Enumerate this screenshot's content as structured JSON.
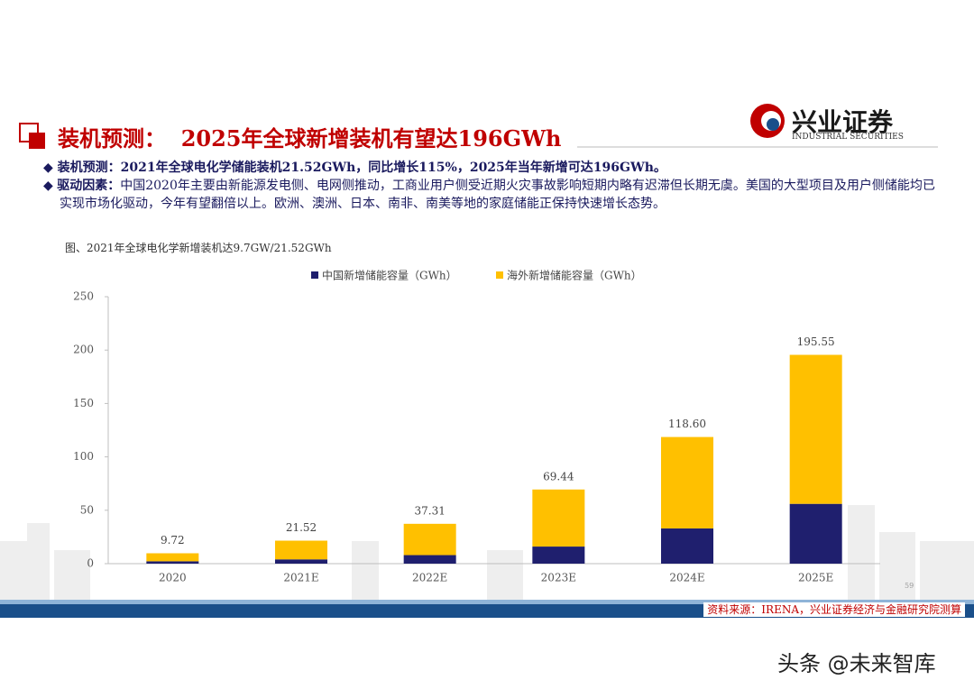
{
  "header": {
    "title": "装机预测：  2025年全球新增装机有望达196GWh",
    "logo_name": "兴业证券",
    "logo_en": "INDUSTRIAL SECURITIES"
  },
  "bullets": [
    {
      "label": "装机预测：",
      "text": "2021年全球电化学储能装机21.52GWh，同比增长115%，2025年当年新增可达196GWh。"
    },
    {
      "label": "驱动因素：",
      "text": "中国2020年主要由新能源发电侧、电网侧推动，工商业用户侧受近期火灾事故影响短期内略有迟滞但长期无虞。美国的大型项目及用户侧储能均已实现市场化驱动，今年有望翻倍以上。欧洲、澳洲、日本、南非、南美等地的家庭储能正保持快速增长态势。"
    }
  ],
  "chart_data": {
    "type": "bar",
    "stacked": true,
    "title": "图、2021年全球电化学新增装机达9.7GW/21.52GWh",
    "categories": [
      "2020",
      "2021E",
      "2022E",
      "2023E",
      "2024E",
      "2025E"
    ],
    "series": [
      {
        "name": "中国新增储能容量（GWh）",
        "color": "#1f1f6e",
        "values": [
          2.2,
          4,
          8,
          16,
          33,
          56
        ]
      },
      {
        "name": "海外新增储能容量（GWh）",
        "color": "#ffc000",
        "values": [
          7.52,
          17.52,
          29.31,
          53.44,
          85.6,
          139.55
        ]
      }
    ],
    "totals": [
      9.72,
      21.52,
      37.31,
      69.44,
      118.6,
      195.55
    ],
    "total_labels": [
      "9.72",
      "21.52",
      "37.31",
      "69.44",
      "118.60",
      "195.55"
    ],
    "ylim": [
      0,
      250
    ],
    "yticks": [
      0,
      50,
      100,
      150,
      200,
      250
    ]
  },
  "source": "资料来源：IRENA，兴业证券经济与金融研究院测算",
  "page_number": "59",
  "watermark": "头条 @未来智库"
}
